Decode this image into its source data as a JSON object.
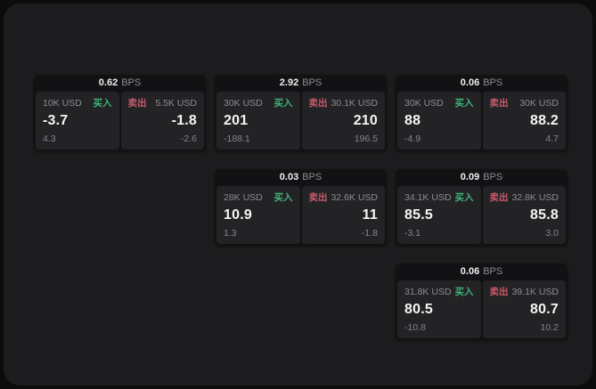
{
  "colors": {
    "outer_bg": "#0c0c0d",
    "panel_bg": "#1c1c1e",
    "card_bg": "#121214",
    "cell_bg": "#232326",
    "text_primary": "#f5f5f6",
    "text_muted": "#8d8d92",
    "buy_green": "#3fb377",
    "sell_red": "#c75b6a"
  },
  "labels": {
    "buy": "买入",
    "sell": "卖出",
    "bps_unit": "BPS"
  },
  "cards": [
    {
      "row": 1,
      "col": 1,
      "bps": "0.62",
      "buy": {
        "amount": "10K USD",
        "value": "-3.7",
        "delta": "4.3"
      },
      "sell": {
        "amount": "5.5K USD",
        "value": "-1.8",
        "delta": "-2.6"
      }
    },
    {
      "row": 1,
      "col": 2,
      "bps": "2.92",
      "buy": {
        "amount": "30K USD",
        "value": "201",
        "delta": "-188.1"
      },
      "sell": {
        "amount": "30.1K USD",
        "value": "210",
        "delta": "196.5"
      }
    },
    {
      "row": 1,
      "col": 3,
      "bps": "0.06",
      "buy": {
        "amount": "30K USD",
        "value": "88",
        "delta": "-4.9"
      },
      "sell": {
        "amount": "30K USD",
        "value": "88.2",
        "delta": "4.7"
      }
    },
    {
      "row": 2,
      "col": 2,
      "bps": "0.03",
      "buy": {
        "amount": "28K USD",
        "value": "10.9",
        "delta": "1.3"
      },
      "sell": {
        "amount": "32.6K USD",
        "value": "11",
        "delta": "-1.8"
      }
    },
    {
      "row": 2,
      "col": 3,
      "bps": "0.09",
      "buy": {
        "amount": "34.1K USD",
        "value": "85.5",
        "delta": "-3.1"
      },
      "sell": {
        "amount": "32.8K USD",
        "value": "85.8",
        "delta": "3.0"
      }
    },
    {
      "row": 3,
      "col": 3,
      "bps": "0.06",
      "buy": {
        "amount": "31.8K USD",
        "value": "80.5",
        "delta": "-10.8"
      },
      "sell": {
        "amount": "39.1K USD",
        "value": "80.7",
        "delta": "10.2"
      }
    }
  ]
}
